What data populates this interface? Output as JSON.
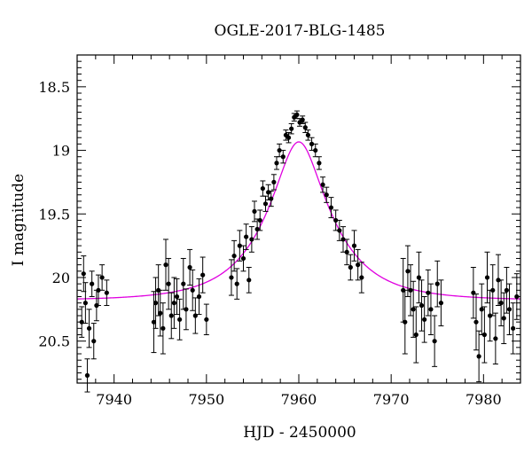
{
  "chart_data": {
    "type": "scatter",
    "title": "OGLE-2017-BLG-1485",
    "xlabel": "HJD - 2450000",
    "ylabel": "I magnitude",
    "xlim": [
      7936,
      7984
    ],
    "ylim": [
      20.83,
      18.25
    ],
    "y_inverted": true,
    "xticks": [
      7940,
      7950,
      7960,
      7970,
      7980
    ],
    "yticks": [
      18.5,
      19,
      19.5,
      20,
      20.5
    ],
    "ytick_labels": [
      "18.5",
      "19",
      "19.5",
      "20",
      "20.5"
    ],
    "model_color": "#e000e0",
    "point_color": "#000000",
    "model": {
      "t0": 7960.0,
      "baseline_mag": 20.18,
      "u0": 0.33,
      "tE": 7.0
    },
    "series": [
      {
        "kind": "photometry",
        "points": [
          [
            7936.5,
            20.35,
            0.12
          ],
          [
            7936.7,
            19.97,
            0.14
          ],
          [
            7936.9,
            20.2,
            0.16
          ],
          [
            7937.1,
            20.77,
            0.13
          ],
          [
            7937.3,
            20.4,
            0.15
          ],
          [
            7937.6,
            20.05,
            0.1
          ],
          [
            7937.8,
            20.5,
            0.14
          ],
          [
            7938.1,
            20.22,
            0.12
          ],
          [
            7938.3,
            20.1,
            0.12
          ],
          [
            7938.7,
            20.0,
            0.1
          ],
          [
            7939.2,
            20.12,
            0.1
          ],
          [
            7944.3,
            20.35,
            0.24
          ],
          [
            7944.5,
            20.2,
            0.2
          ],
          [
            7944.8,
            20.1,
            0.2
          ],
          [
            7945.0,
            20.28,
            0.18
          ],
          [
            7945.3,
            20.4,
            0.2
          ],
          [
            7945.6,
            19.9,
            0.2
          ],
          [
            7945.9,
            20.05,
            0.2
          ],
          [
            7946.2,
            20.3,
            0.18
          ],
          [
            7946.5,
            20.2,
            0.2
          ],
          [
            7946.8,
            20.15,
            0.14
          ],
          [
            7947.1,
            20.33,
            0.16
          ],
          [
            7947.5,
            20.05,
            0.2
          ],
          [
            7947.8,
            20.25,
            0.16
          ],
          [
            7948.2,
            19.92,
            0.14
          ],
          [
            7948.5,
            20.1,
            0.16
          ],
          [
            7948.8,
            20.3,
            0.14
          ],
          [
            7949.2,
            20.15,
            0.14
          ],
          [
            7949.6,
            19.98,
            0.14
          ],
          [
            7950.0,
            20.33,
            0.12
          ],
          [
            7952.7,
            20.0,
            0.14
          ],
          [
            7953.0,
            19.83,
            0.12
          ],
          [
            7953.3,
            20.05,
            0.12
          ],
          [
            7953.6,
            19.75,
            0.12
          ],
          [
            7954.0,
            19.85,
            0.1
          ],
          [
            7954.3,
            19.68,
            0.1
          ],
          [
            7954.6,
            20.02,
            0.1
          ],
          [
            7954.9,
            19.7,
            0.1
          ],
          [
            7955.2,
            19.48,
            0.08
          ],
          [
            7955.5,
            19.62,
            0.08
          ],
          [
            7955.8,
            19.55,
            0.08
          ],
          [
            7956.1,
            19.3,
            0.06
          ],
          [
            7956.4,
            19.42,
            0.06
          ],
          [
            7956.7,
            19.33,
            0.06
          ],
          [
            7957.0,
            19.38,
            0.06
          ],
          [
            7957.3,
            19.25,
            0.06
          ],
          [
            7957.6,
            19.1,
            0.05
          ],
          [
            7957.9,
            19.0,
            0.05
          ],
          [
            7958.3,
            19.05,
            0.05
          ],
          [
            7958.6,
            18.88,
            0.04
          ],
          [
            7958.9,
            18.9,
            0.04
          ],
          [
            7959.2,
            18.83,
            0.04
          ],
          [
            7959.5,
            18.74,
            0.03
          ],
          [
            7959.8,
            18.72,
            0.03
          ],
          [
            7960.1,
            18.78,
            0.03
          ],
          [
            7960.4,
            18.76,
            0.03
          ],
          [
            7960.7,
            18.82,
            0.04
          ],
          [
            7961.0,
            18.88,
            0.04
          ],
          [
            7961.4,
            18.95,
            0.05
          ],
          [
            7961.8,
            19.0,
            0.05
          ],
          [
            7962.2,
            19.1,
            0.05
          ],
          [
            7962.6,
            19.27,
            0.06
          ],
          [
            7963.0,
            19.35,
            0.06
          ],
          [
            7963.5,
            19.45,
            0.08
          ],
          [
            7964.0,
            19.55,
            0.08
          ],
          [
            7964.4,
            19.63,
            0.08
          ],
          [
            7964.8,
            19.7,
            0.1
          ],
          [
            7965.2,
            19.8,
            0.1
          ],
          [
            7965.6,
            19.92,
            0.1
          ],
          [
            7966.0,
            19.75,
            0.12
          ],
          [
            7966.4,
            19.9,
            0.12
          ],
          [
            7966.8,
            20.0,
            0.12
          ],
          [
            7971.3,
            20.1,
            0.25
          ],
          [
            7971.5,
            20.35,
            0.25
          ],
          [
            7971.8,
            19.95,
            0.2
          ],
          [
            7972.1,
            20.1,
            0.2
          ],
          [
            7972.4,
            20.25,
            0.22
          ],
          [
            7972.7,
            20.45,
            0.22
          ],
          [
            7973.0,
            20.0,
            0.2
          ],
          [
            7973.3,
            20.22,
            0.2
          ],
          [
            7973.6,
            20.33,
            0.18
          ],
          [
            7974.0,
            20.12,
            0.18
          ],
          [
            7974.3,
            20.25,
            0.2
          ],
          [
            7974.7,
            20.5,
            0.2
          ],
          [
            7975.0,
            20.05,
            0.18
          ],
          [
            7975.4,
            20.2,
            0.18
          ],
          [
            7978.9,
            20.12,
            0.2
          ],
          [
            7979.2,
            20.35,
            0.22
          ],
          [
            7979.5,
            20.62,
            0.2
          ],
          [
            7979.8,
            20.25,
            0.2
          ],
          [
            7980.1,
            20.45,
            0.22
          ],
          [
            7980.4,
            20.0,
            0.2
          ],
          [
            7980.7,
            20.3,
            0.2
          ],
          [
            7981.0,
            20.1,
            0.2
          ],
          [
            7981.3,
            20.48,
            0.2
          ],
          [
            7981.6,
            20.02,
            0.2
          ],
          [
            7981.9,
            20.2,
            0.18
          ],
          [
            7982.2,
            20.32,
            0.2
          ],
          [
            7982.5,
            20.1,
            0.18
          ],
          [
            7982.8,
            20.25,
            0.2
          ],
          [
            7983.2,
            20.4,
            0.2
          ],
          [
            7983.6,
            20.15,
            0.18
          ]
        ]
      }
    ]
  }
}
